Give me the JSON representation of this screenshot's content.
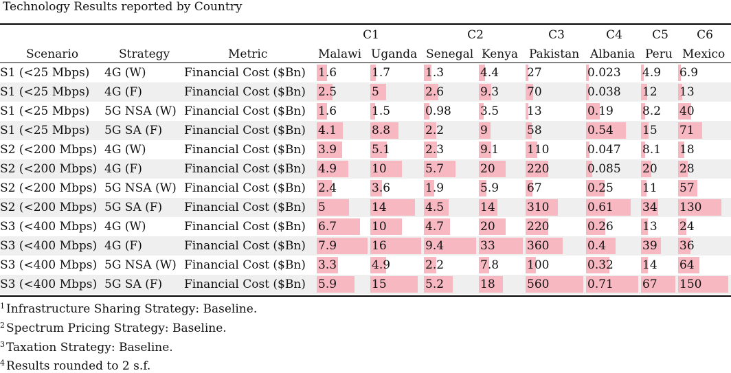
{
  "caption": "Technology Results reported by Country",
  "groups": [
    "C1",
    "C2",
    "C3",
    "C4",
    "C5",
    "C6"
  ],
  "headers": {
    "scenario": "Scenario",
    "strategy": "Strategy",
    "metric": "Metric",
    "countries": [
      "Malawi",
      "Uganda",
      "Senegal",
      "Kenya",
      "Pakistan",
      "Albania",
      "Peru",
      "Mexico"
    ]
  },
  "rows": [
    {
      "scenario": "S1 (<25 Mbps)",
      "strategy": "4G (W)",
      "metric": "Financial Cost ($Bn)",
      "values": [
        "1.6",
        "1.7",
        "1.3",
        "4.4",
        "27",
        "0.023",
        "4.9",
        "6.9"
      ]
    },
    {
      "scenario": "S1 (<25 Mbps)",
      "strategy": "4G (F)",
      "metric": "Financial Cost ($Bn)",
      "values": [
        "2.5",
        "5",
        "2.6",
        "9.3",
        "70",
        "0.038",
        "12",
        "13"
      ]
    },
    {
      "scenario": "S1 (<25 Mbps)",
      "strategy": "5G NSA (W)",
      "metric": "Financial Cost ($Bn)",
      "values": [
        "1.6",
        "1.5",
        "0.98",
        "3.5",
        "13",
        "0.19",
        "8.2",
        "40"
      ]
    },
    {
      "scenario": "S1 (<25 Mbps)",
      "strategy": "5G SA (F)",
      "metric": "Financial Cost ($Bn)",
      "values": [
        "4.1",
        "8.8",
        "2.2",
        "9",
        "58",
        "0.54",
        "15",
        "71"
      ]
    },
    {
      "scenario": "S2 (<200 Mbps)",
      "strategy": "4G (W)",
      "metric": "Financial Cost ($Bn)",
      "values": [
        "3.9",
        "5.1",
        "2.3",
        "9.1",
        "110",
        "0.047",
        "8.1",
        "18"
      ]
    },
    {
      "scenario": "S2 (<200 Mbps)",
      "strategy": "4G (F)",
      "metric": "Financial Cost ($Bn)",
      "values": [
        "4.9",
        "10",
        "5.7",
        "20",
        "220",
        "0.085",
        "20",
        "28"
      ]
    },
    {
      "scenario": "S2 (<200 Mbps)",
      "strategy": "5G NSA (W)",
      "metric": "Financial Cost ($Bn)",
      "values": [
        "2.4",
        "3.6",
        "1.9",
        "5.9",
        "67",
        "0.25",
        "11",
        "57"
      ]
    },
    {
      "scenario": "S2 (<200 Mbps)",
      "strategy": "5G SA (F)",
      "metric": "Financial Cost ($Bn)",
      "values": [
        "5",
        "14",
        "4.5",
        "14",
        "310",
        "0.61",
        "34",
        "130"
      ]
    },
    {
      "scenario": "S3 (<400 Mbps)",
      "strategy": "4G (W)",
      "metric": "Financial Cost ($Bn)",
      "values": [
        "6.7",
        "10",
        "4.7",
        "20",
        "220",
        "0.26",
        "13",
        "24"
      ]
    },
    {
      "scenario": "S3 (<400 Mbps)",
      "strategy": "4G (F)",
      "metric": "Financial Cost ($Bn)",
      "values": [
        "7.9",
        "16",
        "9.4",
        "33",
        "360",
        "0.4",
        "39",
        "36"
      ]
    },
    {
      "scenario": "S3 (<400 Mbps)",
      "strategy": "5G NSA (W)",
      "metric": "Financial Cost ($Bn)",
      "values": [
        "3.3",
        "4.9",
        "2.2",
        "7.8",
        "100",
        "0.32",
        "14",
        "64"
      ]
    },
    {
      "scenario": "S3 (<400 Mbps)",
      "strategy": "5G SA (F)",
      "metric": "Financial Cost ($Bn)",
      "values": [
        "5.9",
        "15",
        "5.2",
        "18",
        "560",
        "0.71",
        "67",
        "150"
      ]
    }
  ],
  "bar_color": "#f7b8c2",
  "stripe_color": "#efefef",
  "notes": [
    {
      "n": "1",
      "text": "Infrastructure Sharing Strategy: Baseline."
    },
    {
      "n": "2",
      "text": "Spectrum Pricing Strategy: Baseline."
    },
    {
      "n": "3",
      "text": "Taxation Strategy: Baseline."
    },
    {
      "n": "4",
      "text": "Results rounded to 2 s.f."
    }
  ]
}
